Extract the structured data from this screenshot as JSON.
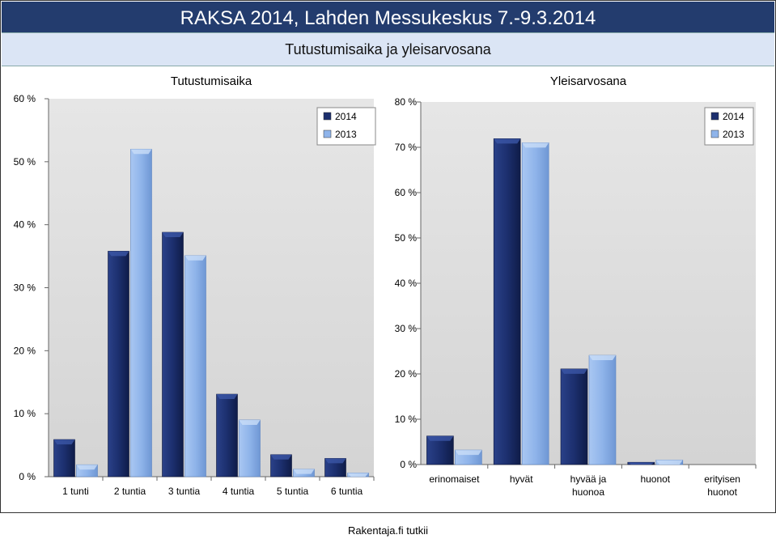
{
  "header": {
    "title": "RAKSA 2014, Lahden Messukeskus 7.-9.3.2014",
    "subtitle": "Tutustumisaika ja yleisarvosana"
  },
  "footer": {
    "text": "Rakentaja.fi tutkii"
  },
  "colors": {
    "s2014": "#1c2f6e",
    "s2013": "#8fb4ea",
    "plot_bg": "#d9d9d9",
    "header_bg": "#233c6e",
    "subheader_bg": "#dbe5f5"
  },
  "chart_data": [
    {
      "type": "bar",
      "title": "Tutustumisaika",
      "categories": [
        "1 tunti",
        "2 tuntia",
        "3 tuntia",
        "4 tuntia",
        "5 tuntia",
        "6 tuntia"
      ],
      "series": [
        {
          "name": "2014",
          "values": [
            5.9,
            35.8,
            38.8,
            13.1,
            3.5,
            2.9
          ]
        },
        {
          "name": "2013",
          "values": [
            1.9,
            52.0,
            35.1,
            9.0,
            1.2,
            0.6
          ]
        }
      ],
      "ylim": [
        0,
        60
      ],
      "yticks": [
        "0 %",
        "10 %",
        "20 %",
        "30 %",
        "40 %",
        "50 %",
        "60 %"
      ],
      "legend": "top-right",
      "grid": false
    },
    {
      "type": "bar",
      "title": "Yleisarvosana",
      "categories": [
        "erinomaiset",
        "hyvät",
        "hyvää ja huonoa",
        "huonot",
        "erityisen huonot"
      ],
      "series": [
        {
          "name": "2014",
          "values": [
            6.3,
            71.9,
            21.1,
            0.5,
            0.0
          ]
        },
        {
          "name": "2013",
          "values": [
            3.2,
            71.0,
            24.1,
            1.0,
            0.0
          ]
        }
      ],
      "ylim": [
        0,
        80
      ],
      "yticks": [
        "0 %",
        "10 %",
        "20 %",
        "30 %",
        "40 %",
        "50 %",
        "60 %",
        "70 %",
        "80 %"
      ],
      "legend": "top-right",
      "grid": false
    }
  ]
}
